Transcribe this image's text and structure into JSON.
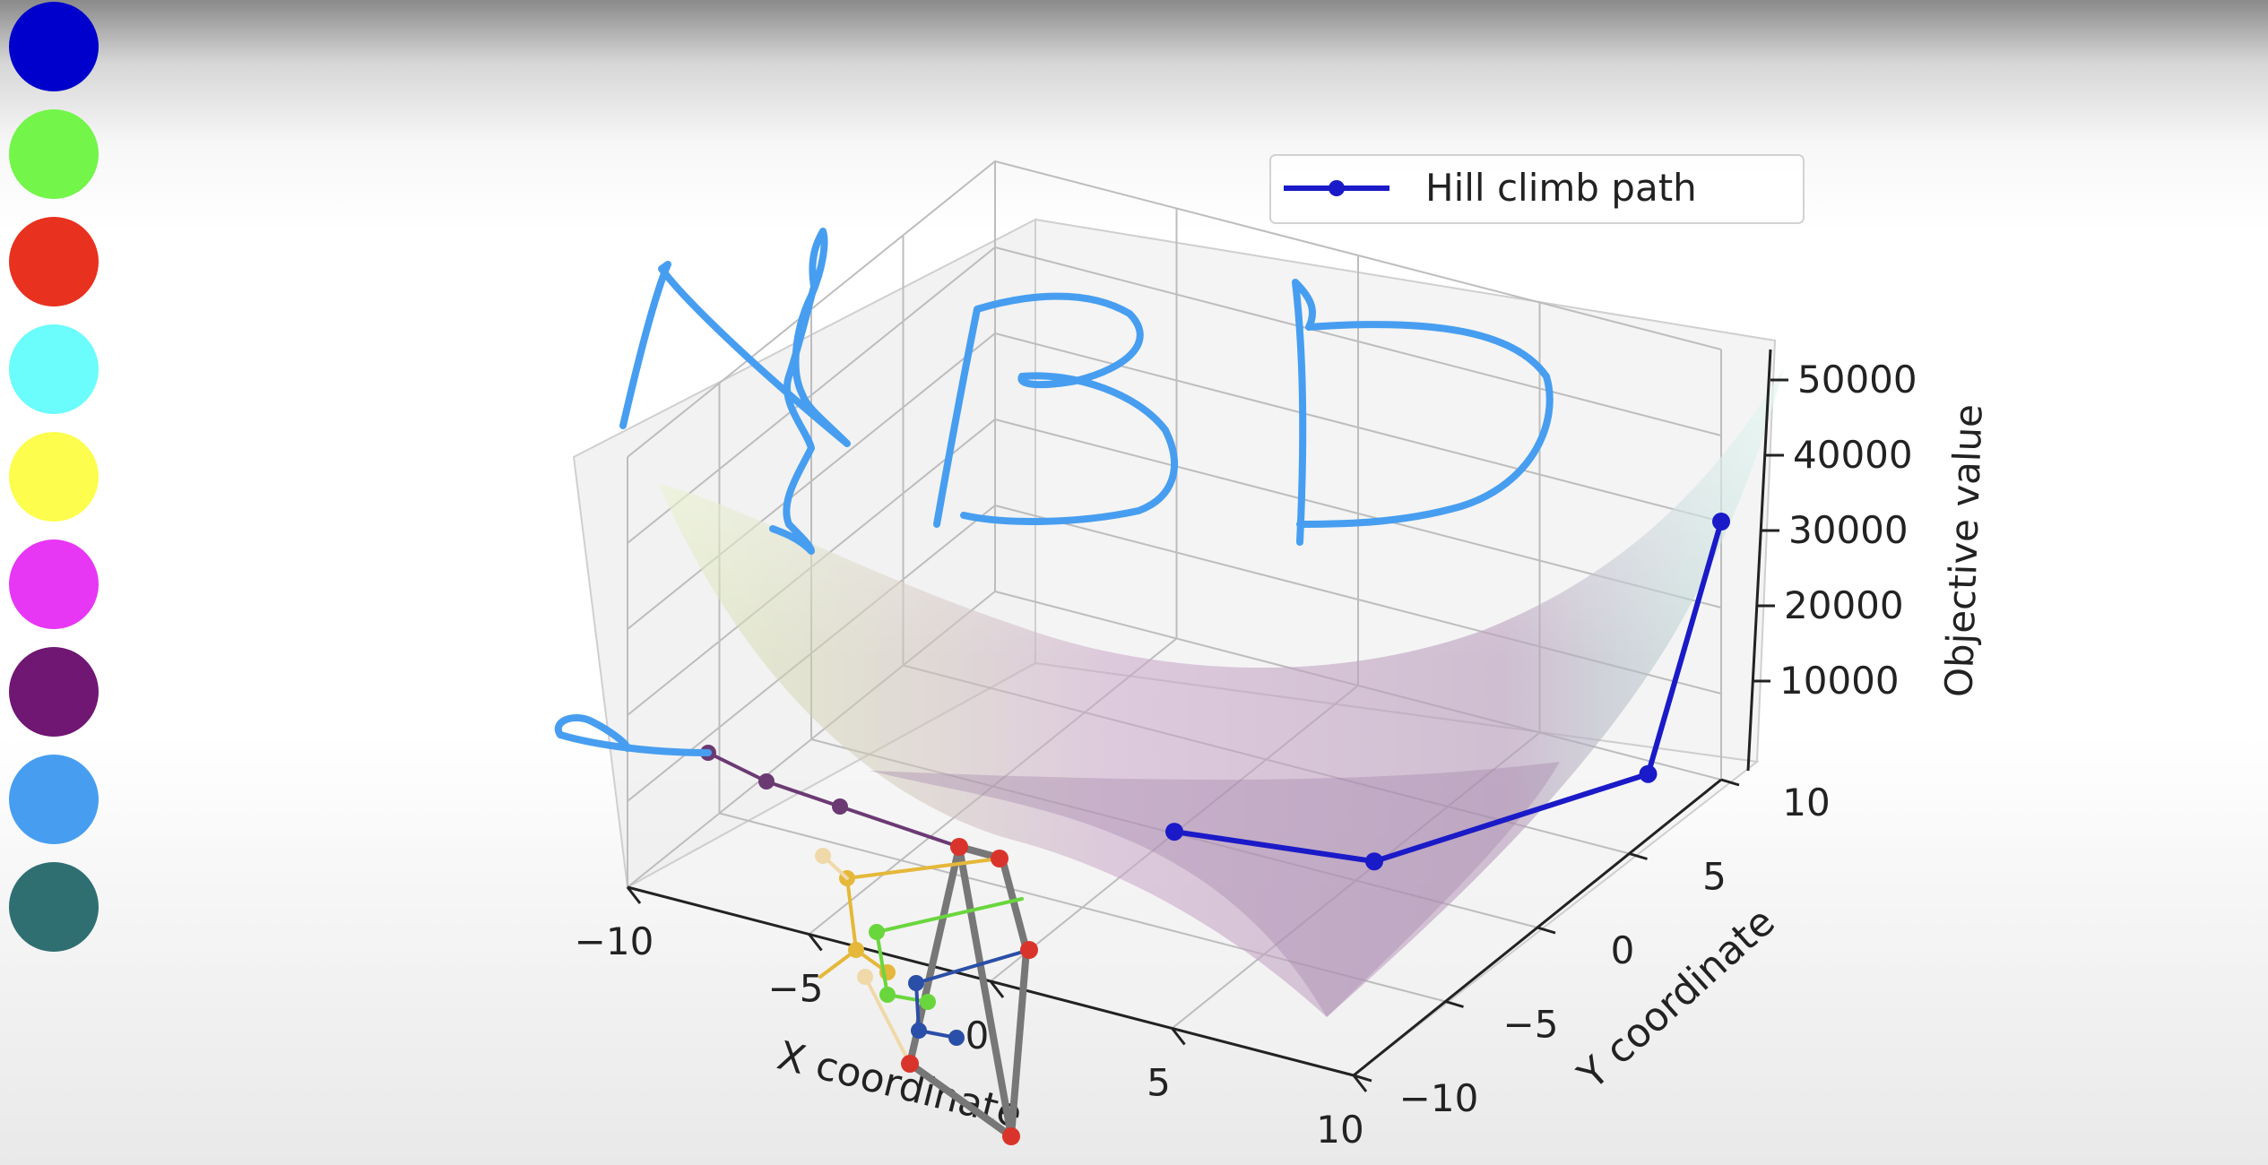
{
  "palette": {
    "colors": [
      "#0000cc",
      "#73f54a",
      "#e8311f",
      "#6bfcfc",
      "#fdfd4e",
      "#e836f5",
      "#701673",
      "#479ef0",
      "#2f6f72"
    ]
  },
  "chart_data": {
    "type": "surface3d",
    "title": "",
    "xlabel": "X coordinate",
    "ylabel": "Y coordinate",
    "zlabel": "Objective value",
    "x_ticks": [
      "−10",
      "−5",
      "0",
      "5",
      "10"
    ],
    "y_ticks": [
      "−10",
      "−5",
      "0",
      "5",
      "10"
    ],
    "z_ticks": [
      "10000",
      "20000",
      "30000",
      "40000",
      "50000"
    ],
    "xlim": [
      -10,
      10
    ],
    "ylim": [
      -10,
      10
    ],
    "zlim": [
      0,
      50000
    ],
    "grid": true,
    "legend": {
      "position": "top-right",
      "entries": [
        "Hill climb path"
      ],
      "color": "#1a1ac8"
    },
    "series": [
      {
        "name": "Hill climb path",
        "points": [
          [
            10,
            10,
            30000
          ],
          [
            9,
            8,
            3000
          ],
          [
            5,
            1,
            500
          ],
          [
            0,
            0,
            200
          ]
        ]
      }
    ]
  },
  "annotation": {
    "handwritten_text": "HBD",
    "ink_color": "#479ef0"
  }
}
